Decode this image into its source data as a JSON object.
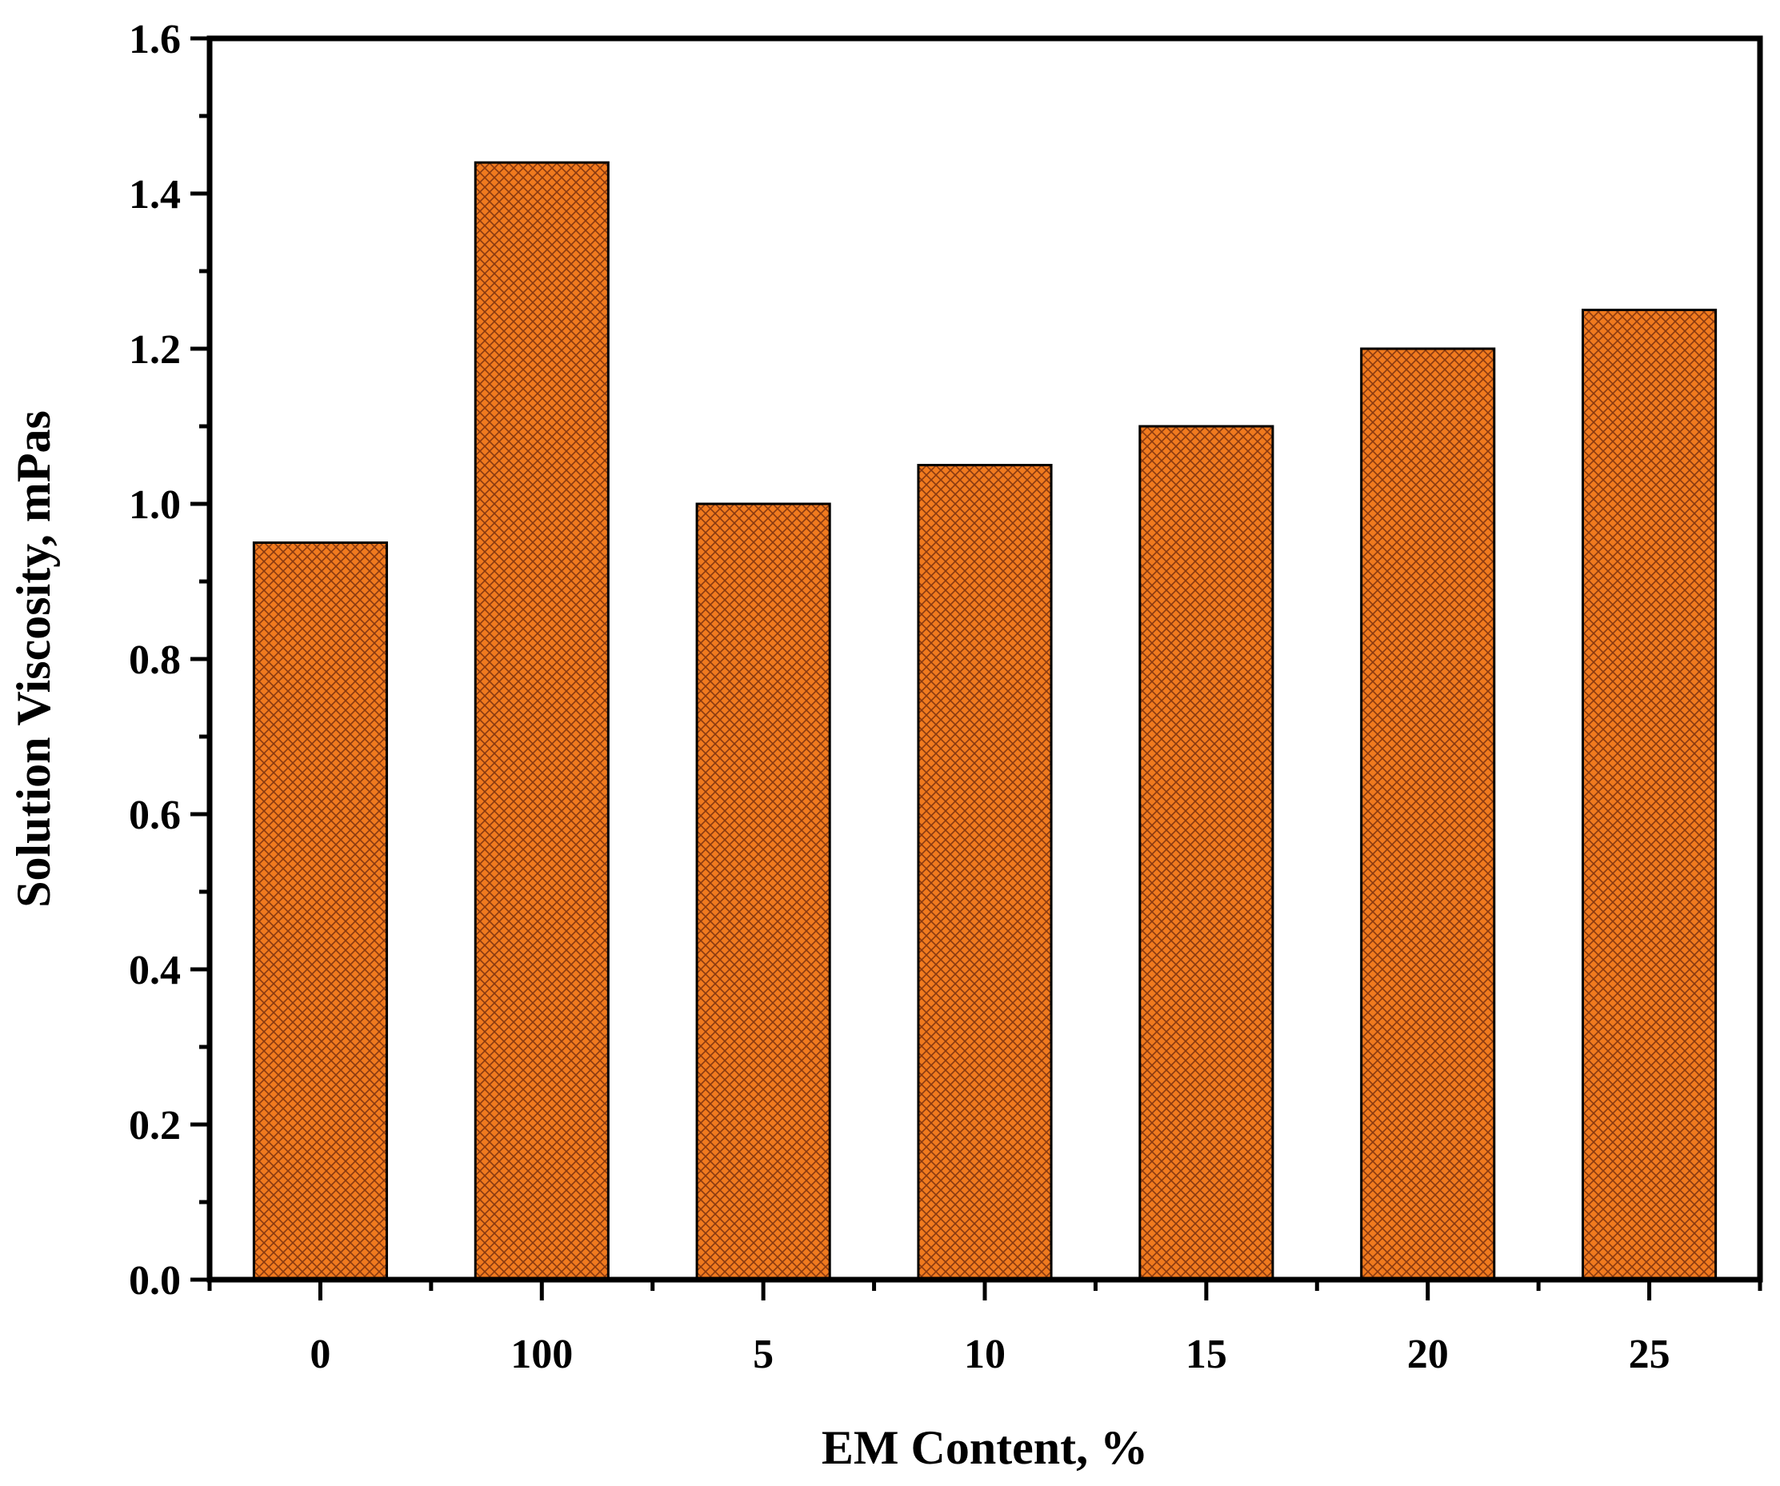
{
  "chart_data": {
    "type": "bar",
    "title": "",
    "xlabel": "EM Content, %",
    "ylabel": "Solution Viscosity, mPas",
    "categories": [
      "0",
      "100",
      "5",
      "10",
      "15",
      "20",
      "25"
    ],
    "values": [
      0.95,
      1.44,
      1.0,
      1.05,
      1.1,
      1.2,
      1.25
    ],
    "ylim": [
      0.0,
      1.6
    ],
    "yticks": [
      "0.0",
      "0.2",
      "0.4",
      "0.6",
      "0.8",
      "1.0",
      "1.2",
      "1.4",
      "1.6"
    ],
    "grid": false,
    "legend": "none",
    "bar_color": "#f07a1e",
    "bar_pattern": "crosshatch"
  }
}
